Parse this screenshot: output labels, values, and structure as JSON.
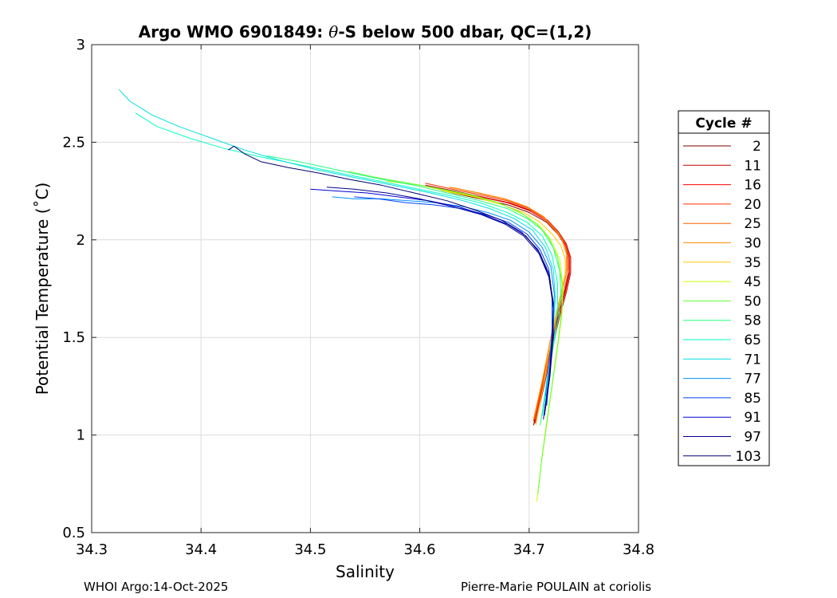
{
  "footer": {
    "left": "WHOI Argo:14-Oct-2025",
    "right": "Pierre-Marie POULAIN at coriolis"
  },
  "chart_data": {
    "type": "line",
    "title_prefix": "Argo WMO 6901849: ",
    "title_symbol": "θ",
    "title_suffix": "-S below 500 dbar,  QC=(1,2)",
    "xlabel": "Salinity",
    "ylabel": "Potential Temperature (˚C)",
    "xlim": [
      34.3,
      34.8
    ],
    "ylim": [
      0.5,
      3
    ],
    "xticks": [
      "34.3",
      "34.4",
      "34.5",
      "34.6",
      "34.7",
      "34.8"
    ],
    "yticks": [
      "0.5",
      "1",
      "1.5",
      "2",
      "2.5",
      "3"
    ],
    "grid": true,
    "legend": {
      "title": "Cycle #",
      "placement": "outside-right"
    },
    "series": [
      {
        "name": "2",
        "color": "#7f0000",
        "x": [
          34.704,
          34.712,
          34.72,
          34.726,
          34.732,
          34.736,
          34.736,
          34.733,
          34.726,
          34.716,
          34.7,
          34.68,
          34.655,
          34.63,
          34.61
        ],
        "y": [
          1.05,
          1.25,
          1.45,
          1.6,
          1.72,
          1.82,
          1.9,
          1.97,
          2.03,
          2.09,
          2.14,
          2.18,
          2.21,
          2.24,
          2.27
        ]
      },
      {
        "name": "11",
        "color": "#c00000",
        "x": [
          34.706,
          34.714,
          34.722,
          34.728,
          34.734,
          34.738,
          34.738,
          34.734,
          34.727,
          34.717,
          34.702,
          34.682,
          34.657,
          34.632,
          34.605
        ],
        "y": [
          1.06,
          1.26,
          1.46,
          1.61,
          1.73,
          1.83,
          1.91,
          1.98,
          2.04,
          2.1,
          2.15,
          2.19,
          2.22,
          2.25,
          2.28
        ]
      },
      {
        "name": "16",
        "color": "#ff0000",
        "x": [
          34.705,
          34.713,
          34.721,
          34.727,
          34.733,
          34.737,
          34.737,
          34.733,
          34.725,
          34.715,
          34.7,
          34.68,
          34.655,
          34.628,
          34.6
        ],
        "y": [
          1.06,
          1.26,
          1.46,
          1.61,
          1.73,
          1.83,
          1.91,
          1.98,
          2.04,
          2.1,
          2.15,
          2.19,
          2.22,
          2.25,
          2.28
        ]
      },
      {
        "name": "20",
        "color": "#ff3000",
        "x": [
          34.704,
          34.712,
          34.72,
          34.726,
          34.732,
          34.736,
          34.736,
          34.732,
          34.724,
          34.714,
          34.7,
          34.68,
          34.656,
          34.63,
          34.605
        ],
        "y": [
          1.07,
          1.27,
          1.47,
          1.62,
          1.74,
          1.84,
          1.92,
          1.99,
          2.05,
          2.11,
          2.16,
          2.2,
          2.23,
          2.26,
          2.29
        ]
      },
      {
        "name": "25",
        "color": "#ff6000",
        "x": [
          34.705,
          34.713,
          34.72,
          34.726,
          34.731,
          34.735,
          34.735,
          34.731,
          34.723,
          34.713,
          34.698,
          34.678,
          34.654,
          34.628
        ],
        "y": [
          1.08,
          1.28,
          1.48,
          1.63,
          1.75,
          1.85,
          1.93,
          2.0,
          2.06,
          2.12,
          2.17,
          2.21,
          2.24,
          2.27
        ]
      },
      {
        "name": "30",
        "color": "#ff9000",
        "x": [
          34.704,
          34.712,
          34.719,
          34.725,
          34.73,
          34.734,
          34.734,
          34.73,
          34.722,
          34.712,
          34.697,
          34.677,
          34.653,
          34.627
        ],
        "y": [
          1.08,
          1.28,
          1.48,
          1.63,
          1.75,
          1.85,
          1.93,
          2.0,
          2.06,
          2.12,
          2.17,
          2.21,
          2.24,
          2.27
        ]
      },
      {
        "name": "35",
        "color": "#ffc800",
        "x": [
          34.706,
          34.713,
          34.719,
          34.724,
          34.729,
          34.733,
          34.733,
          34.729,
          34.721,
          34.71,
          34.695,
          34.675,
          34.65,
          34.622
        ],
        "y": [
          1.05,
          1.25,
          1.45,
          1.6,
          1.72,
          1.82,
          1.9,
          1.97,
          2.03,
          2.09,
          2.14,
          2.18,
          2.22,
          2.25
        ]
      },
      {
        "name": "45",
        "color": "#c8ff00",
        "x": [
          34.707,
          34.711,
          34.716,
          34.721,
          34.726,
          34.73,
          34.731,
          34.728,
          34.72,
          34.71,
          34.695,
          34.676,
          34.652,
          34.625,
          34.6,
          34.57
        ],
        "y": [
          0.66,
          0.85,
          1.05,
          1.25,
          1.45,
          1.62,
          1.76,
          1.9,
          2.0,
          2.07,
          2.13,
          2.18,
          2.22,
          2.25,
          2.28,
          2.3
        ]
      },
      {
        "name": "50",
        "color": "#60ff30",
        "x": [
          34.708,
          34.712,
          34.717,
          34.722,
          34.727,
          34.73,
          34.73,
          34.726,
          34.718,
          34.707,
          34.692,
          34.672,
          34.648,
          34.62,
          34.59,
          34.56,
          34.535
        ],
        "y": [
          0.7,
          0.9,
          1.1,
          1.3,
          1.5,
          1.65,
          1.78,
          1.91,
          2.01,
          2.08,
          2.14,
          2.19,
          2.23,
          2.26,
          2.29,
          2.32,
          2.35
        ]
      },
      {
        "name": "58",
        "color": "#20ff80",
        "x": [
          34.71,
          34.716,
          34.722,
          34.727,
          34.729,
          34.728,
          34.722,
          34.712,
          34.698,
          34.68,
          34.655,
          34.625,
          34.595,
          34.565,
          34.54,
          34.515,
          34.49,
          34.46
        ],
        "y": [
          1.05,
          1.25,
          1.45,
          1.6,
          1.72,
          1.84,
          1.96,
          2.05,
          2.11,
          2.16,
          2.2,
          2.24,
          2.28,
          2.31,
          2.34,
          2.37,
          2.4,
          2.43
        ]
      },
      {
        "name": "65",
        "color": "#00ffc0",
        "x": [
          34.712,
          34.718,
          34.723,
          34.726,
          34.726,
          34.721,
          34.712,
          34.698,
          34.68,
          34.655,
          34.625,
          34.59,
          34.555,
          34.52,
          34.485,
          34.45,
          34.42,
          34.39,
          34.36,
          34.34
        ],
        "y": [
          1.1,
          1.3,
          1.5,
          1.65,
          1.78,
          1.92,
          2.02,
          2.09,
          2.14,
          2.19,
          2.23,
          2.27,
          2.31,
          2.35,
          2.39,
          2.43,
          2.47,
          2.52,
          2.58,
          2.65
        ]
      },
      {
        "name": "71",
        "color": "#00e0e0",
        "x": [
          34.713,
          34.718,
          34.722,
          34.724,
          34.722,
          34.715,
          34.703,
          34.686,
          34.664,
          34.64,
          34.61,
          34.575,
          34.54,
          34.505,
          34.47,
          34.44,
          34.41,
          34.38,
          34.355,
          34.335,
          34.325
        ],
        "y": [
          1.15,
          1.35,
          1.55,
          1.7,
          1.85,
          1.96,
          2.05,
          2.11,
          2.16,
          2.2,
          2.24,
          2.28,
          2.32,
          2.36,
          2.41,
          2.46,
          2.52,
          2.58,
          2.64,
          2.71,
          2.77
        ]
      },
      {
        "name": "77",
        "color": "#0090ff",
        "x": [
          34.715,
          34.719,
          34.722,
          34.723,
          34.72,
          34.712,
          34.7,
          34.683,
          34.662,
          34.64,
          34.615,
          34.59,
          34.565,
          34.54,
          34.52
        ],
        "y": [
          1.2,
          1.4,
          1.58,
          1.72,
          1.86,
          1.96,
          2.04,
          2.1,
          2.14,
          2.17,
          2.19,
          2.2,
          2.21,
          2.21,
          2.22
        ]
      },
      {
        "name": "85",
        "color": "#0040ff",
        "x": [
          34.716,
          34.719,
          34.721,
          34.721,
          34.718,
          34.71,
          34.698,
          34.681,
          34.66,
          34.638,
          34.612,
          34.588,
          34.562,
          34.54
        ],
        "y": [
          1.15,
          1.35,
          1.55,
          1.7,
          1.85,
          1.95,
          2.03,
          2.09,
          2.13,
          2.16,
          2.18,
          2.19,
          2.21,
          2.22
        ]
      },
      {
        "name": "91",
        "color": "#0000d0",
        "x": [
          34.713,
          34.718,
          34.721,
          34.722,
          34.719,
          34.71,
          34.697,
          34.68,
          34.658,
          34.635,
          34.608,
          34.58,
          34.552,
          34.525,
          34.5
        ],
        "y": [
          1.08,
          1.28,
          1.48,
          1.65,
          1.8,
          1.93,
          2.02,
          2.08,
          2.13,
          2.17,
          2.2,
          2.22,
          2.24,
          2.25,
          2.26
        ]
      },
      {
        "name": "97",
        "color": "#000090",
        "x": [
          34.714,
          34.719,
          34.722,
          34.722,
          34.718,
          34.709,
          34.695,
          34.678,
          34.656,
          34.63,
          34.6,
          34.57,
          34.54,
          34.515
        ],
        "y": [
          1.1,
          1.3,
          1.5,
          1.66,
          1.81,
          1.93,
          2.02,
          2.08,
          2.13,
          2.17,
          2.21,
          2.24,
          2.26,
          2.27
        ]
      },
      {
        "name": "103",
        "color": "#000070",
        "x": [
          34.714,
          34.719,
          34.722,
          34.722,
          34.718,
          34.708,
          34.693,
          34.675,
          34.652,
          34.625,
          34.595,
          34.565,
          34.535,
          34.51,
          34.48,
          34.455,
          34.44,
          34.43,
          34.425
        ],
        "y": [
          1.12,
          1.32,
          1.52,
          1.68,
          1.83,
          1.95,
          2.04,
          2.1,
          2.15,
          2.2,
          2.24,
          2.28,
          2.31,
          2.34,
          2.37,
          2.4,
          2.44,
          2.48,
          2.46
        ]
      }
    ]
  }
}
